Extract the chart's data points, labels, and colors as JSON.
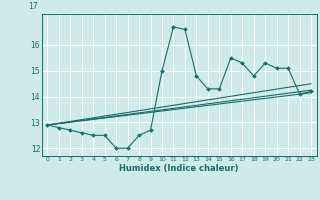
{
  "title": "",
  "xlabel": "Humidex (Indice chaleur)",
  "ylabel": "",
  "bg_color": "#ceeaea",
  "grid_color": "#ffffff",
  "line_color": "#1a6b6b",
  "xlim": [
    -0.5,
    23.5
  ],
  "ylim": [
    11.7,
    17.2
  ],
  "yticks": [
    12,
    13,
    14,
    15,
    16
  ],
  "xticks": [
    0,
    1,
    2,
    3,
    4,
    5,
    6,
    7,
    8,
    9,
    10,
    11,
    12,
    13,
    14,
    15,
    16,
    17,
    18,
    19,
    20,
    21,
    22,
    23
  ],
  "series1_x": [
    0,
    1,
    2,
    3,
    4,
    5,
    6,
    7,
    8,
    9,
    10,
    11,
    12,
    13,
    14,
    15,
    16,
    17,
    18,
    19,
    20,
    21,
    22,
    23
  ],
  "series1_y": [
    12.9,
    12.8,
    12.7,
    12.6,
    12.5,
    12.5,
    12.0,
    12.0,
    12.5,
    12.7,
    15.0,
    16.7,
    16.6,
    14.8,
    14.3,
    14.3,
    15.5,
    15.3,
    14.8,
    15.3,
    15.1,
    15.1,
    14.1,
    14.2
  ],
  "series2_x": [
    0,
    23
  ],
  "series2_y": [
    12.9,
    14.15
  ],
  "series3_x": [
    0,
    23
  ],
  "series3_y": [
    12.9,
    14.5
  ],
  "series4_x": [
    0,
    23
  ],
  "series4_y": [
    12.9,
    14.25
  ]
}
